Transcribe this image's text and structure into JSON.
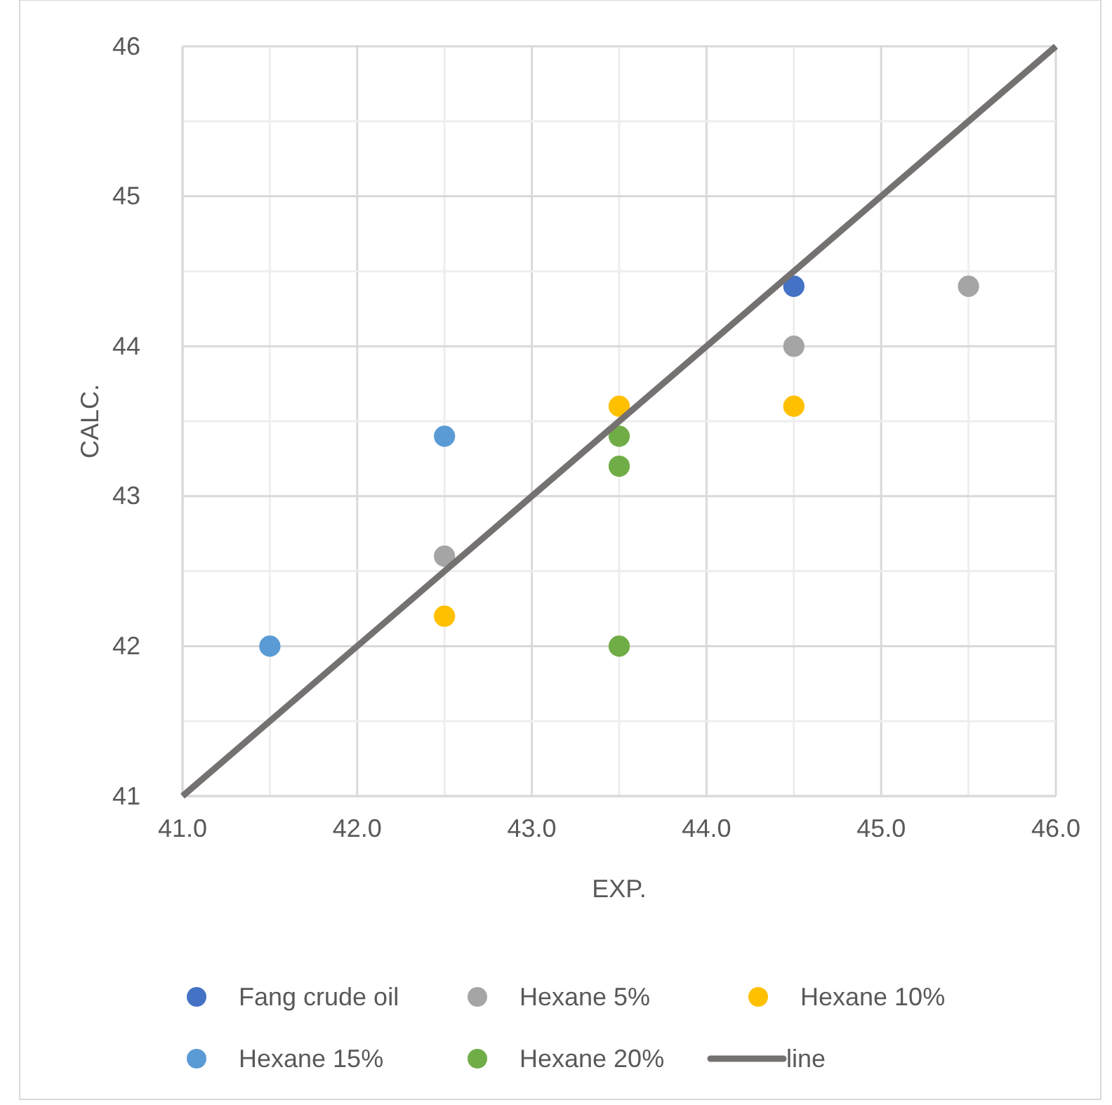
{
  "chart_data": {
    "type": "scatter",
    "xlabel": "EXP.",
    "ylabel": "CALC.",
    "xlim": [
      41,
      46
    ],
    "ylim": [
      41,
      46
    ],
    "xticks": [
      {
        "value": 41,
        "label": "41.0"
      },
      {
        "value": 41.5,
        "label": null
      },
      {
        "value": 42,
        "label": "42.0"
      },
      {
        "value": 42.5,
        "label": null
      },
      {
        "value": 43,
        "label": "43.0"
      },
      {
        "value": 43.5,
        "label": null
      },
      {
        "value": 44,
        "label": "44.0"
      },
      {
        "value": 44.5,
        "label": null
      },
      {
        "value": 45,
        "label": "45.0"
      },
      {
        "value": 45.5,
        "label": null
      },
      {
        "value": 46,
        "label": "46.0"
      }
    ],
    "yticks": [
      41,
      {
        "value": 41.5,
        "label": null
      },
      42,
      {
        "value": 42.5,
        "label": null
      },
      43,
      {
        "value": 43.5,
        "label": null
      },
      44,
      {
        "value": 44.5,
        "label": null
      },
      45,
      {
        "value": 45.5,
        "label": null
      },
      46
    ],
    "grid": true,
    "legend": "bottom",
    "marker": "circle",
    "series": [
      {
        "name": "Fang crude oil",
        "color": "#4472c4",
        "x": [
          44.5
        ],
        "values": [
          44.4
        ]
      },
      {
        "name": "Hexane 5%",
        "color": "#a5a5a5",
        "x": [
          42.5,
          44.5,
          45.5
        ],
        "values": [
          42.6,
          44.0,
          44.4
        ]
      },
      {
        "name": "Hexane 10%",
        "color": "#ffc000",
        "x": [
          42.5,
          43.5,
          44.5
        ],
        "values": [
          42.2,
          43.6,
          43.6
        ]
      },
      {
        "name": "Hexane 15%",
        "color": "#5b9bd5",
        "x": [
          41.5,
          42.5
        ],
        "values": [
          42.0,
          43.4
        ]
      },
      {
        "name": "Hexane 20%",
        "color": "#70ad47",
        "x": [
          43.5,
          43.5,
          43.5
        ],
        "values": [
          43.4,
          43.2,
          42.0
        ]
      },
      {
        "name": "line",
        "type": "line",
        "marker": "none",
        "color": "#767171",
        "x": [
          41,
          46
        ],
        "values": [
          41,
          46
        ]
      }
    ]
  }
}
